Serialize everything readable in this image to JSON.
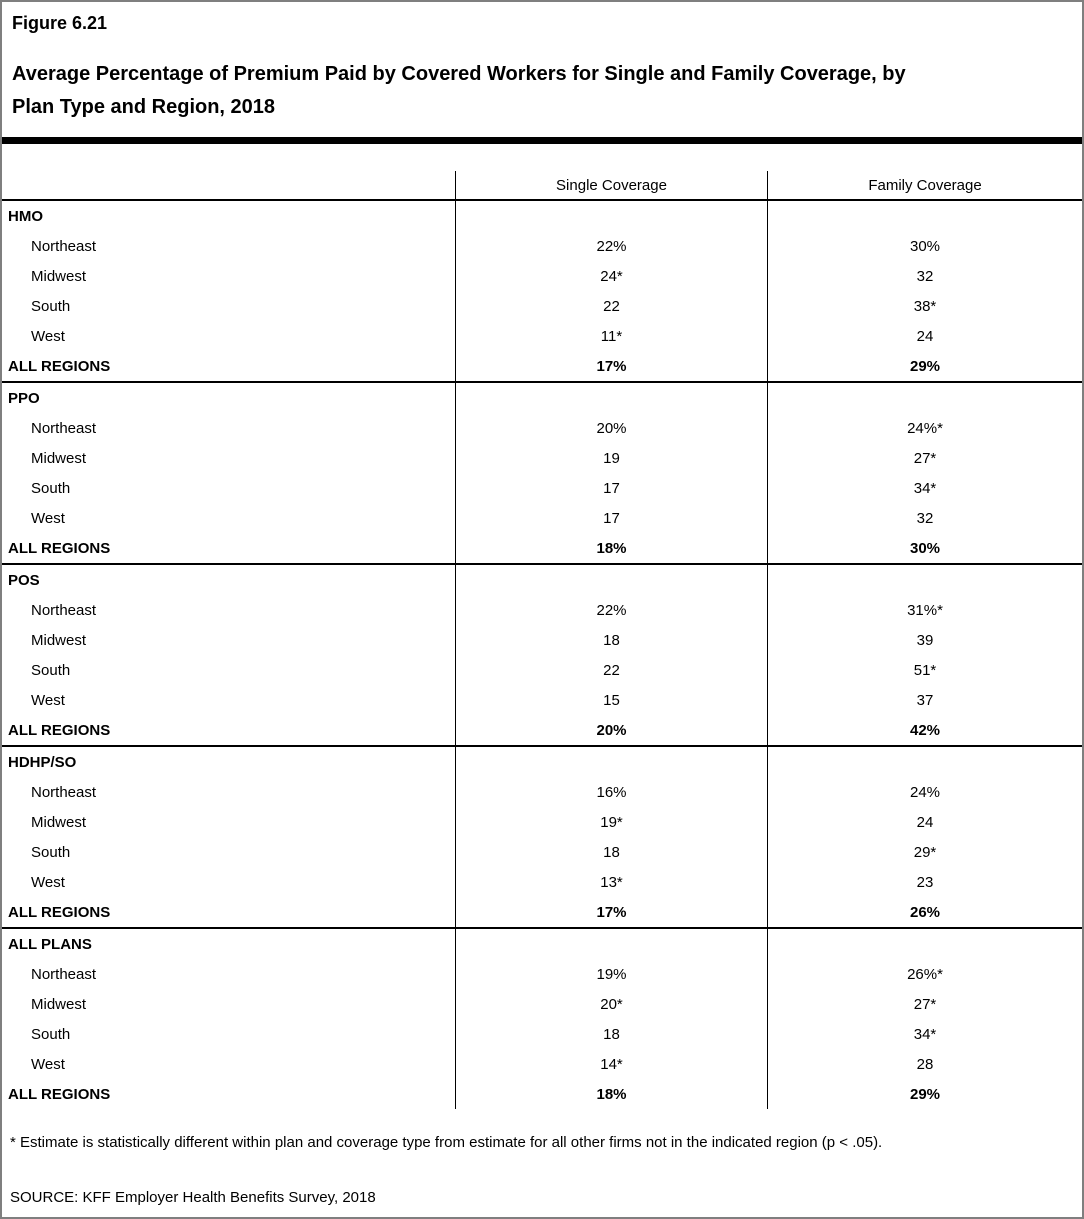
{
  "figure_label": "Figure 6.21",
  "chart_data": {
    "type": "table",
    "title": "Average Percentage of Premium Paid by Covered Workers for Single and Family Coverage, by\nPlan Type and Region, 2018",
    "columns": {
      "single": "Single Coverage",
      "family": "Family Coverage"
    },
    "row_label_header": "",
    "sections": [
      {
        "plan": "HMO",
        "rows": [
          {
            "region": "Northeast",
            "single": "22%",
            "family": "30%"
          },
          {
            "region": "Midwest",
            "single": "24*",
            "family": "32"
          },
          {
            "region": "South",
            "single": "22",
            "family": "38*"
          },
          {
            "region": "West",
            "single": "11*",
            "family": "24"
          }
        ],
        "total": {
          "label": "ALL REGIONS",
          "single": "17%",
          "family": "29%"
        }
      },
      {
        "plan": "PPO",
        "rows": [
          {
            "region": "Northeast",
            "single": "20%",
            "family": "24%*"
          },
          {
            "region": "Midwest",
            "single": "19",
            "family": "27*"
          },
          {
            "region": "South",
            "single": "17",
            "family": "34*"
          },
          {
            "region": "West",
            "single": "17",
            "family": "32"
          }
        ],
        "total": {
          "label": "ALL REGIONS",
          "single": "18%",
          "family": "30%"
        }
      },
      {
        "plan": "POS",
        "rows": [
          {
            "region": "Northeast",
            "single": "22%",
            "family": "31%*"
          },
          {
            "region": "Midwest",
            "single": "18",
            "family": "39"
          },
          {
            "region": "South",
            "single": "22",
            "family": "51*"
          },
          {
            "region": "West",
            "single": "15",
            "family": "37"
          }
        ],
        "total": {
          "label": "ALL REGIONS",
          "single": "20%",
          "family": "42%"
        }
      },
      {
        "plan": "HDHP/SO",
        "rows": [
          {
            "region": "Northeast",
            "single": "16%",
            "family": "24%"
          },
          {
            "region": "Midwest",
            "single": "19*",
            "family": "24"
          },
          {
            "region": "South",
            "single": "18",
            "family": "29*"
          },
          {
            "region": "West",
            "single": "13*",
            "family": "23"
          }
        ],
        "total": {
          "label": "ALL REGIONS",
          "single": "17%",
          "family": "26%"
        }
      },
      {
        "plan": "ALL PLANS",
        "rows": [
          {
            "region": "Northeast",
            "single": "19%",
            "family": "26%*"
          },
          {
            "region": "Midwest",
            "single": "20*",
            "family": "27*"
          },
          {
            "region": "South",
            "single": "18",
            "family": "34*"
          },
          {
            "region": "West",
            "single": "14*",
            "family": "28"
          }
        ],
        "total": {
          "label": "ALL REGIONS",
          "single": "18%",
          "family": "29%"
        }
      }
    ],
    "footnote": "* Estimate is statistically different within plan and coverage type from estimate for all other firms not in the indicated region (p < .05).",
    "source": "SOURCE: KFF Employer Health Benefits Survey, 2018"
  },
  "colors": {
    "text": "#000000",
    "background": "#ffffff",
    "outer_border": "#7f7f7f",
    "rule": "#000000"
  }
}
